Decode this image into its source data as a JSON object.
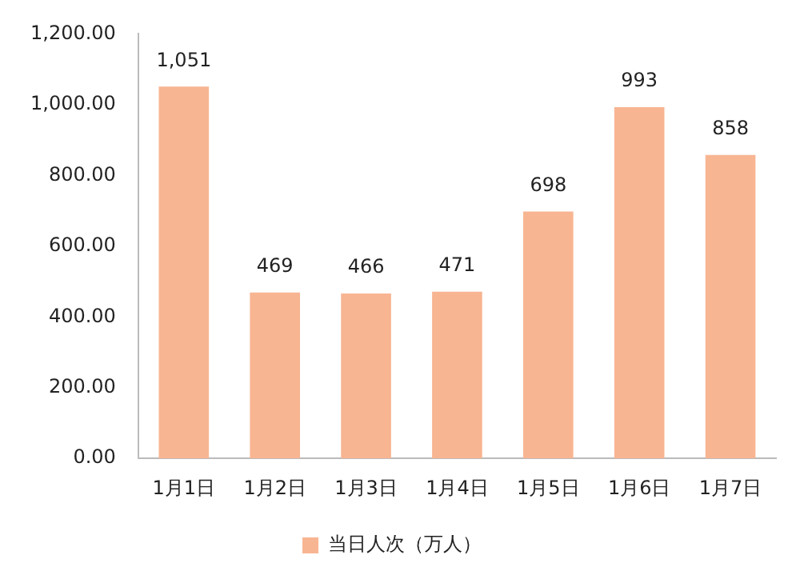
{
  "chart_data": {
    "type": "bar",
    "categories": [
      "1月1日",
      "1月2日",
      "1月3日",
      "1月4日",
      "1月5日",
      "1月6日",
      "1月7日"
    ],
    "series": [
      {
        "name": "当日人次（万人）",
        "color": "#f8b592",
        "values": [
          1051,
          469,
          466,
          471,
          698,
          993,
          858
        ],
        "value_labels": [
          "1,051",
          "469",
          "466",
          "471",
          "698",
          "993",
          "858"
        ]
      }
    ],
    "ylim": [
      0,
      1200
    ],
    "yticks": [
      {
        "value": 0,
        "label": "0.00"
      },
      {
        "value": 200,
        "label": "200.00"
      },
      {
        "value": 400,
        "label": "400.00"
      },
      {
        "value": 600,
        "label": "600.00"
      },
      {
        "value": 800,
        "label": "800.00"
      },
      {
        "value": 1000,
        "label": "1,000.00"
      },
      {
        "value": 1200,
        "label": "1,200.00"
      }
    ],
    "grid": false,
    "legend": "bottom"
  }
}
